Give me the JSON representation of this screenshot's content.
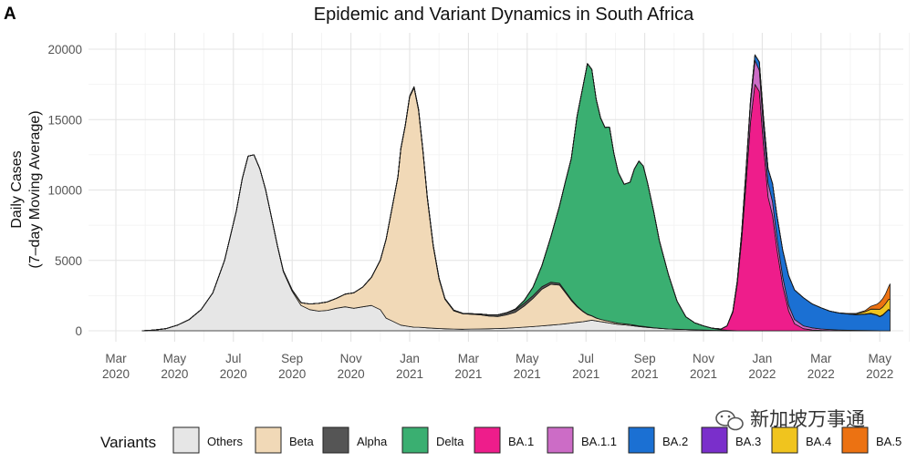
{
  "panel_label": "A",
  "watermark": "新加坡万事通",
  "chart_data": {
    "type": "area",
    "stacked": true,
    "title": "Epidemic and Variant Dynamics in South Africa",
    "xlabel": "",
    "ylabel_line1": "Daily Cases",
    "ylabel_line2": "(7–day Moving Average)",
    "ylim": [
      0,
      20500
    ],
    "y_ticks": [
      0,
      5000,
      10000,
      15000,
      20000
    ],
    "x_range_months": [
      0,
      27.6
    ],
    "x_ticks": [
      {
        "m": 0,
        "label1": "Mar",
        "label2": "2020"
      },
      {
        "m": 2,
        "label1": "May",
        "label2": "2020"
      },
      {
        "m": 4,
        "label1": "Jul",
        "label2": "2020"
      },
      {
        "m": 6,
        "label1": "Sep",
        "label2": "2020"
      },
      {
        "m": 8,
        "label1": "Nov",
        "label2": "2020"
      },
      {
        "m": 10,
        "label1": "Jan",
        "label2": "2021"
      },
      {
        "m": 12,
        "label1": "Mar",
        "label2": "2021"
      },
      {
        "m": 14,
        "label1": "May",
        "label2": "2021"
      },
      {
        "m": 16,
        "label1": "Jul",
        "label2": "2021"
      },
      {
        "m": 18,
        "label1": "Sep",
        "label2": "2021"
      },
      {
        "m": 20,
        "label1": "Nov",
        "label2": "2021"
      },
      {
        "m": 22,
        "label1": "Jan",
        "label2": "2022"
      },
      {
        "m": 24,
        "label1": "Mar",
        "label2": "2022"
      },
      {
        "m": 26,
        "label1": "May",
        "label2": "2022"
      }
    ],
    "grid": true,
    "x_months_since_mar2020": [
      0.9,
      1.3,
      1.7,
      2.1,
      2.5,
      2.9,
      3.3,
      3.7,
      4.1,
      4.3,
      4.5,
      4.7,
      4.9,
      5.1,
      5.3,
      5.5,
      5.7,
      6.0,
      6.3,
      6.6,
      6.9,
      7.2,
      7.5,
      7.8,
      8.1,
      8.4,
      8.7,
      9.0,
      9.2,
      9.4,
      9.6,
      9.7,
      9.85,
      10.0,
      10.15,
      10.3,
      10.45,
      10.6,
      10.8,
      11.0,
      11.2,
      11.5,
      11.8,
      12.1,
      12.4,
      12.7,
      13.0,
      13.3,
      13.6,
      13.9,
      14.2,
      14.5,
      14.8,
      15.1,
      15.3,
      15.5,
      15.7,
      15.9,
      16.05,
      16.2,
      16.35,
      16.5,
      16.65,
      16.8,
      16.95,
      17.1,
      17.3,
      17.5,
      17.65,
      17.8,
      17.95,
      18.1,
      18.3,
      18.5,
      18.8,
      19.1,
      19.4,
      19.7,
      20.0,
      20.3,
      20.6,
      20.8,
      21.0,
      21.15,
      21.3,
      21.45,
      21.6,
      21.75,
      21.9,
      22.05,
      22.2,
      22.35,
      22.5,
      22.7,
      22.9,
      23.1,
      23.4,
      23.7,
      24.0,
      24.3,
      24.6,
      24.9,
      25.2,
      25.5,
      25.7,
      25.9,
      26.0,
      26.1,
      26.2,
      26.3,
      26.35
    ],
    "series": [
      {
        "name": "Others",
        "color": "#e6e6e6",
        "values": [
          0,
          50,
          150,
          400,
          800,
          1500,
          2700,
          5000,
          8500,
          10800,
          12400,
          12500,
          11500,
          10000,
          8000,
          6000,
          4200,
          2800,
          1800,
          1500,
          1400,
          1450,
          1600,
          1700,
          1600,
          1700,
          1800,
          1500,
          900,
          700,
          500,
          400,
          350,
          300,
          250,
          250,
          230,
          210,
          180,
          160,
          140,
          120,
          110,
          120,
          130,
          140,
          160,
          180,
          220,
          260,
          300,
          350,
          400,
          450,
          500,
          550,
          600,
          650,
          700,
          750,
          700,
          650,
          600,
          550,
          500,
          450,
          420,
          380,
          340,
          300,
          270,
          240,
          200,
          170,
          130,
          110,
          90,
          70,
          50,
          30,
          20,
          10,
          5,
          0,
          0,
          0,
          0,
          0,
          0,
          0,
          0,
          0,
          0,
          0,
          0,
          0,
          0,
          0,
          0,
          0,
          0,
          0,
          0,
          0,
          0,
          0,
          0,
          0,
          0
        ]
      },
      {
        "name": "Beta",
        "color": "#f1d9b7",
        "values": [
          0,
          0,
          0,
          0,
          0,
          0,
          0,
          0,
          0,
          0,
          0,
          0,
          0,
          0,
          10,
          30,
          60,
          100,
          200,
          400,
          550,
          600,
          700,
          900,
          1100,
          1400,
          2000,
          3500,
          5600,
          8000,
          10400,
          12500,
          14200,
          16300,
          17000,
          15400,
          12500,
          9200,
          5800,
          3500,
          2100,
          1300,
          1100,
          1050,
          1000,
          900,
          850,
          950,
          1100,
          1500,
          2000,
          2600,
          2900,
          2800,
          2200,
          1600,
          1100,
          700,
          450,
          300,
          200,
          160,
          140,
          120,
          100,
          90,
          80,
          70,
          60,
          50,
          40,
          30,
          20,
          10,
          0,
          0,
          0,
          0,
          0,
          0,
          0,
          0,
          0,
          0,
          0,
          0,
          0,
          0,
          0,
          0,
          0,
          0,
          0,
          0,
          0,
          0,
          0,
          0,
          0,
          0,
          0,
          0,
          0,
          0,
          0,
          0,
          0,
          0,
          0
        ]
      },
      {
        "name": "Alpha",
        "color": "#555555",
        "values": [
          0,
          0,
          0,
          0,
          0,
          0,
          0,
          0,
          0,
          0,
          0,
          0,
          0,
          0,
          0,
          0,
          0,
          0,
          0,
          0,
          0,
          0,
          0,
          0,
          0,
          0,
          0,
          10,
          20,
          30,
          40,
          50,
          60,
          70,
          80,
          90,
          100,
          100,
          90,
          70,
          50,
          40,
          30,
          40,
          60,
          90,
          120,
          150,
          180,
          200,
          200,
          180,
          150,
          120,
          100,
          80,
          60,
          40,
          30,
          20,
          10,
          0,
          0,
          0,
          0,
          0,
          0,
          0,
          0,
          0,
          0,
          0,
          0,
          0,
          0,
          0,
          0,
          0,
          0,
          0,
          0,
          0,
          0,
          0,
          0,
          0,
          0,
          0,
          0,
          0,
          0,
          0,
          0,
          0,
          0,
          0,
          0,
          0,
          0,
          0,
          0,
          0,
          0,
          0,
          0,
          0,
          0,
          0,
          0,
          0,
          0,
          0,
          0
        ]
      },
      {
        "name": "Delta",
        "color": "#3aaf71",
        "values": [
          0,
          0,
          0,
          0,
          0,
          0,
          0,
          0,
          0,
          0,
          0,
          0,
          0,
          0,
          0,
          0,
          0,
          0,
          0,
          0,
          0,
          0,
          0,
          0,
          0,
          0,
          0,
          0,
          0,
          0,
          0,
          0,
          0,
          0,
          0,
          0,
          0,
          0,
          0,
          0,
          0,
          0,
          0,
          0,
          0,
          0,
          0,
          0,
          50,
          200,
          600,
          1500,
          3200,
          5500,
          7800,
          10000,
          13500,
          16000,
          17800,
          17500,
          15500,
          14300,
          13700,
          13800,
          12000,
          10700,
          9900,
          10100,
          11100,
          11700,
          11400,
          10200,
          8300,
          6200,
          3900,
          2000,
          900,
          500,
          300,
          150,
          60,
          30,
          10,
          0,
          0,
          0,
          0,
          0,
          0,
          0,
          0,
          0,
          0,
          0,
          0,
          0,
          0,
          0,
          0,
          0,
          0,
          0,
          0,
          0,
          0,
          0,
          0,
          0,
          0,
          0,
          0
        ]
      },
      {
        "name": "BA.1",
        "color": "#ee1d8b",
        "values": [
          0,
          0,
          0,
          0,
          0,
          0,
          0,
          0,
          0,
          0,
          0,
          0,
          0,
          0,
          0,
          0,
          0,
          0,
          0,
          0,
          0,
          0,
          0,
          0,
          0,
          0,
          0,
          0,
          0,
          0,
          0,
          0,
          0,
          0,
          0,
          0,
          0,
          0,
          0,
          0,
          0,
          0,
          0,
          0,
          0,
          0,
          0,
          0,
          0,
          0,
          0,
          0,
          0,
          0,
          0,
          0,
          0,
          0,
          0,
          0,
          0,
          0,
          0,
          0,
          0,
          0,
          0,
          0,
          0,
          0,
          0,
          0,
          0,
          0,
          0,
          0,
          0,
          0,
          0,
          0,
          50,
          300,
          1300,
          3300,
          6500,
          10500,
          14800,
          17500,
          17000,
          13000,
          9500,
          8200,
          5800,
          3200,
          1400,
          500,
          150,
          60,
          30,
          10,
          0,
          0,
          0,
          0,
          0,
          0,
          0,
          0,
          0,
          0,
          0
        ]
      },
      {
        "name": "BA.1.1",
        "color": "#cc6cc6",
        "values": [
          0,
          0,
          0,
          0,
          0,
          0,
          0,
          0,
          0,
          0,
          0,
          0,
          0,
          0,
          0,
          0,
          0,
          0,
          0,
          0,
          0,
          0,
          0,
          0,
          0,
          0,
          0,
          0,
          0,
          0,
          0,
          0,
          0,
          0,
          0,
          0,
          0,
          0,
          0,
          0,
          0,
          0,
          0,
          0,
          0,
          0,
          0,
          0,
          0,
          0,
          0,
          0,
          0,
          0,
          0,
          0,
          0,
          0,
          0,
          0,
          0,
          0,
          0,
          0,
          0,
          0,
          0,
          0,
          0,
          0,
          0,
          0,
          0,
          0,
          0,
          0,
          0,
          0,
          0,
          0,
          0,
          10,
          60,
          180,
          450,
          900,
          1300,
          1700,
          1500,
          1200,
          1000,
          950,
          800,
          600,
          400,
          300,
          200,
          150,
          100,
          80,
          60,
          40,
          30,
          20,
          10,
          5,
          0,
          0,
          0,
          0,
          0
        ]
      },
      {
        "name": "BA.2",
        "color": "#1b70d3",
        "values": [
          0,
          0,
          0,
          0,
          0,
          0,
          0,
          0,
          0,
          0,
          0,
          0,
          0,
          0,
          0,
          0,
          0,
          0,
          0,
          0,
          0,
          0,
          0,
          0,
          0,
          0,
          0,
          0,
          0,
          0,
          0,
          0,
          0,
          0,
          0,
          0,
          0,
          0,
          0,
          0,
          0,
          0,
          0,
          0,
          0,
          0,
          0,
          0,
          0,
          0,
          0,
          0,
          0,
          0,
          0,
          0,
          0,
          0,
          0,
          0,
          0,
          0,
          0,
          0,
          0,
          0,
          0,
          0,
          0,
          0,
          0,
          0,
          0,
          0,
          0,
          0,
          0,
          0,
          0,
          0,
          0,
          0,
          20,
          60,
          100,
          150,
          250,
          400,
          600,
          800,
          1000,
          1300,
          1600,
          1900,
          2100,
          2100,
          2000,
          1700,
          1500,
          1300,
          1200,
          1150,
          1100,
          1150,
          1200,
          1100,
          1000,
          1100,
          1300,
          1500,
          1400
        ]
      },
      {
        "name": "BA.3",
        "color": "#7a2fcb",
        "values": [
          0,
          0,
          0,
          0,
          0,
          0,
          0,
          0,
          0,
          0,
          0,
          0,
          0,
          0,
          0,
          0,
          0,
          0,
          0,
          0,
          0,
          0,
          0,
          0,
          0,
          0,
          0,
          0,
          0,
          0,
          0,
          0,
          0,
          0,
          0,
          0,
          0,
          0,
          0,
          0,
          0,
          0,
          0,
          0,
          0,
          0,
          0,
          0,
          0,
          0,
          0,
          0,
          0,
          0,
          0,
          0,
          0,
          0,
          0,
          0,
          0,
          0,
          0,
          0,
          0,
          0,
          0,
          0,
          0,
          0,
          0,
          0,
          0,
          0,
          0,
          0,
          0,
          0,
          0,
          0,
          0,
          0,
          0,
          0,
          0,
          0,
          0,
          0,
          0,
          0,
          0,
          0,
          0,
          0,
          0,
          0,
          0,
          0,
          5,
          10,
          15,
          20,
          25,
          30,
          30,
          30,
          30,
          30,
          30,
          30,
          30
        ]
      },
      {
        "name": "BA.4",
        "color": "#f0c41e",
        "values": [
          0,
          0,
          0,
          0,
          0,
          0,
          0,
          0,
          0,
          0,
          0,
          0,
          0,
          0,
          0,
          0,
          0,
          0,
          0,
          0,
          0,
          0,
          0,
          0,
          0,
          0,
          0,
          0,
          0,
          0,
          0,
          0,
          0,
          0,
          0,
          0,
          0,
          0,
          0,
          0,
          0,
          0,
          0,
          0,
          0,
          0,
          0,
          0,
          0,
          0,
          0,
          0,
          0,
          0,
          0,
          0,
          0,
          0,
          0,
          0,
          0,
          0,
          0,
          0,
          0,
          0,
          0,
          0,
          0,
          0,
          0,
          0,
          0,
          0,
          0,
          0,
          0,
          0,
          0,
          0,
          0,
          0,
          0,
          0,
          0,
          0,
          0,
          0,
          0,
          0,
          0,
          0,
          0,
          0,
          0,
          0,
          0,
          0,
          0,
          0,
          0,
          20,
          60,
          150,
          300,
          400,
          500,
          550,
          600,
          700,
          800
        ]
      },
      {
        "name": "BA.5",
        "color": "#ec7212",
        "values": [
          0,
          0,
          0,
          0,
          0,
          0,
          0,
          0,
          0,
          0,
          0,
          0,
          0,
          0,
          0,
          0,
          0,
          0,
          0,
          0,
          0,
          0,
          0,
          0,
          0,
          0,
          0,
          0,
          0,
          0,
          0,
          0,
          0,
          0,
          0,
          0,
          0,
          0,
          0,
          0,
          0,
          0,
          0,
          0,
          0,
          0,
          0,
          0,
          0,
          0,
          0,
          0,
          0,
          0,
          0,
          0,
          0,
          0,
          0,
          0,
          0,
          0,
          0,
          0,
          0,
          0,
          0,
          0,
          0,
          0,
          0,
          0,
          0,
          0,
          0,
          0,
          0,
          0,
          0,
          0,
          0,
          0,
          0,
          0,
          0,
          0,
          0,
          0,
          0,
          0,
          0,
          0,
          0,
          0,
          0,
          0,
          0,
          0,
          0,
          0,
          0,
          0,
          20,
          80,
          200,
          350,
          500,
          600,
          700,
          900,
          1100
        ]
      }
    ],
    "legend": {
      "title": "Variants",
      "placement": "bottom",
      "entries": [
        "Others",
        "Beta",
        "Alpha",
        "Delta",
        "BA.1",
        "BA.1.1",
        "BA.2",
        "BA.3",
        "BA.4",
        "BA.5"
      ]
    }
  }
}
